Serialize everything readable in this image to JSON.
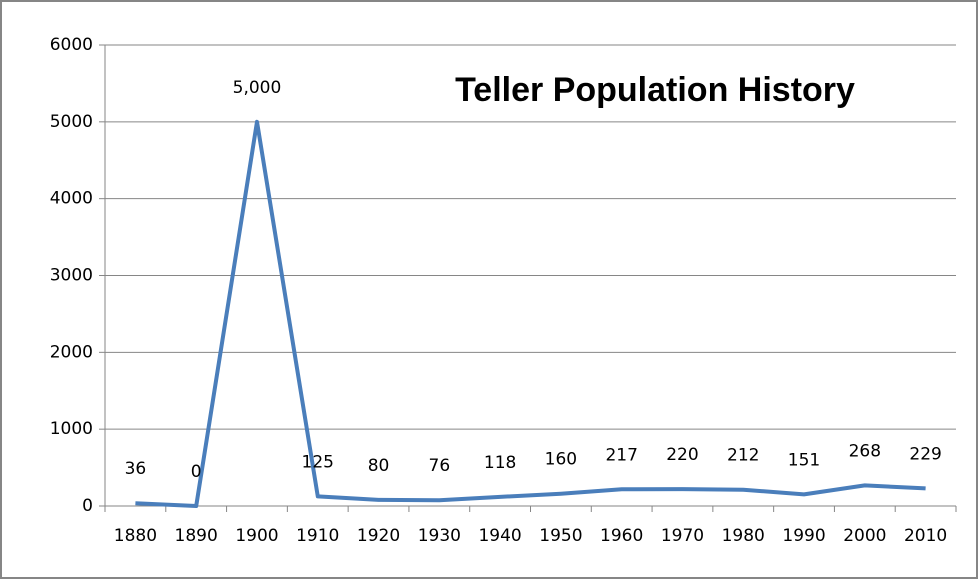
{
  "chart_data": {
    "type": "line",
    "title": "Teller Population History",
    "categories": [
      "1880",
      "1890",
      "1900",
      "1910",
      "1920",
      "1930",
      "1940",
      "1950",
      "1960",
      "1970",
      "1980",
      "1990",
      "2000",
      "2010"
    ],
    "values": [
      36,
      0,
      5000,
      125,
      80,
      76,
      118,
      160,
      217,
      220,
      212,
      151,
      268,
      229
    ],
    "value_labels": [
      "36",
      "0",
      "5,000",
      "125",
      "80",
      "76",
      "118",
      "160",
      "217",
      "220",
      "212",
      "151",
      "268",
      "229"
    ],
    "color": "#4a7ebb",
    "ylim": [
      0,
      6000
    ],
    "yticks": [
      0,
      1000,
      2000,
      3000,
      4000,
      5000,
      6000
    ],
    "grid": true
  }
}
